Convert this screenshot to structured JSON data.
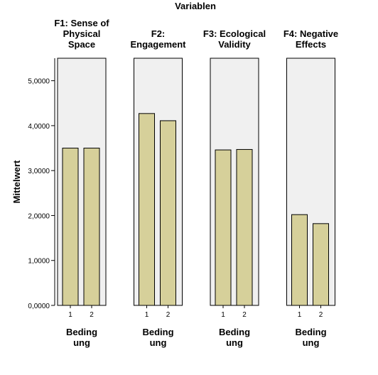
{
  "chart_data": {
    "type": "bar",
    "title": "Variablen",
    "ylabel": "Mittelwert",
    "ylim": [
      0,
      5.5
    ],
    "y_ticks": [
      "0,0000",
      "1,0000",
      "2,0000",
      "3,0000",
      "4,0000",
      "5,0000"
    ],
    "y_tick_values": [
      0,
      1,
      2,
      3,
      4,
      5
    ],
    "categories": [
      "1",
      "2"
    ],
    "bar_color": "#d6d09a",
    "panel_color": "#f0f0f0",
    "panels": [
      {
        "title_lines": [
          "F1: Sense of",
          "Physical",
          "Space"
        ],
        "values": [
          3.5,
          3.5
        ],
        "xlabel_lines": [
          "Beding",
          "ung"
        ]
      },
      {
        "title_lines": [
          "F2:",
          "Engagement"
        ],
        "values": [
          4.27,
          4.11
        ],
        "xlabel_lines": [
          "Beding",
          "ung"
        ]
      },
      {
        "title_lines": [
          "F3: Ecological",
          "Validity"
        ],
        "values": [
          3.46,
          3.47
        ],
        "xlabel_lines": [
          "Beding",
          "ung"
        ]
      },
      {
        "title_lines": [
          "F4: Negative",
          "Effects"
        ],
        "values": [
          2.02,
          1.82
        ],
        "xlabel_lines": [
          "Beding",
          "ung"
        ]
      }
    ]
  }
}
